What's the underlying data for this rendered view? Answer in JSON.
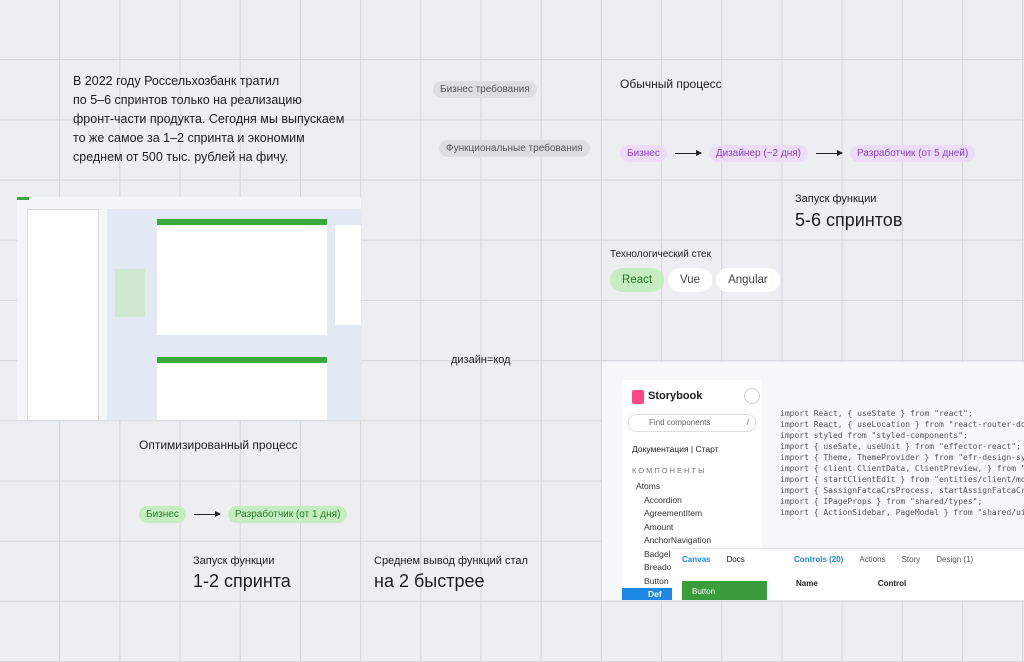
{
  "intro": {
    "lines": [
      "В 2022 году Россельхозбанк тратил",
      "по 5–6 спринтов только на реализацию",
      "фронт-части продукта. Сегодня мы выпускаем",
      "то же самое за 1–2 спринта и экономим",
      "среднем от 500 тыс. рублей на фичу."
    ]
  },
  "requirements": [
    "Бизнес требования",
    "Функциональные требования"
  ],
  "usual_process": {
    "title": "Обычный процесс",
    "steps": [
      "Бизнес",
      "Дизайнер (~2 дня)",
      "Разработчик (от 5 дней)"
    ]
  },
  "usual_launch": {
    "label": "Запуск функции",
    "value": "5-6 спринтов"
  },
  "tech_stack": {
    "title": "Технологический стек",
    "items": [
      "React",
      "Vue",
      "Angular"
    ]
  },
  "motto": "дизайн=код",
  "optimized_process": {
    "title": "Оптимизированный процесс",
    "steps": [
      "Бизнес",
      "Разработчик (от 1 дня)"
    ]
  },
  "optimized_launch": {
    "label": "Запуск функции",
    "value": "1-2 спринта"
  },
  "speedup": {
    "label": "Среднем вывод функций стал",
    "value": "на 2 быстрее"
  },
  "storybook": {
    "logo": "Storybook",
    "search": "Find components",
    "shortcut": "/",
    "docs_link": "Документация | Старт",
    "section": "КОМПОНЕНТЫ",
    "tree": [
      "Atoms",
      "Accordion",
      "AgreementItem",
      "Amount",
      "AnchorNavigation",
      "Badgel",
      "Breado",
      "Button",
      "Def"
    ],
    "canvas_tabs": [
      "Canvas",
      "Docs"
    ],
    "panel_tabs": [
      "Controls (20)",
      "Actions",
      "Story",
      "Design (1)"
    ],
    "table_head": [
      "Name",
      "Control"
    ],
    "preview_button": "Button",
    "code": [
      "import React, { useState } from \"react\";",
      "import React, { useLocation } from \"react-router-dom",
      "import styled from \"styled-components\";",
      "import { useSate, useUnit } from \"effector-react\";",
      "import { Theme, ThemeProvider } from \"efr-design-sys",
      "import { client ClientData, ClientPreview, } from \"e",
      "import { startClientEdit } from \"entities/client/mod",
      "import { SassignFatcaCrsProcess, startAssignFatcaCrs",
      "import { IPageProps } from \"shared/types\";",
      "import { ActionSidebar, PageModal } from \"shared/ui\""
    ]
  }
}
